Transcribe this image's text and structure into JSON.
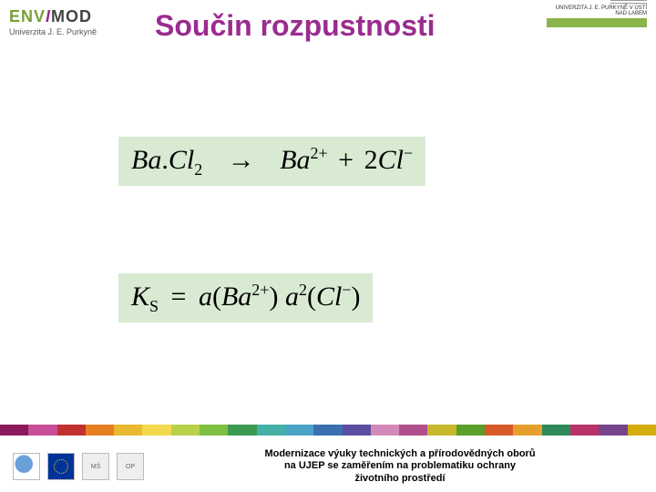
{
  "header": {
    "logo_main_env": "ENV",
    "logo_main_i": "I",
    "logo_main_mod": "MOD",
    "logo_sub": "Univerzita J. E. Purkyně",
    "title": "Součin rozpustnosti",
    "right_text": "UNIVERZITA J. E. PURKYNĚ V ÚSTÍ NAD LABEM"
  },
  "equations": {
    "eq1": {
      "lhs_a": "Ba",
      "lhs_dot": ".",
      "lhs_b": "Cl",
      "lhs_sub": "2",
      "arrow": "→",
      "rhs_a": "Ba",
      "rhs_a_sup": "2+",
      "plus": "+",
      "rhs_coef": "2",
      "rhs_b": "Cl",
      "rhs_b_sup": "−"
    },
    "eq2": {
      "lhs": "K",
      "lhs_sub": "S",
      "eq": "=",
      "a1": "a",
      "p1o": "(",
      "ion1": "Ba",
      "ion1_sup": "2+",
      "p1c": ")",
      "a2": "a",
      "a2_sup": "2",
      "p2o": "(",
      "ion2": "Cl",
      "ion2_sup": "−",
      "p2c": ")"
    }
  },
  "colorstrip": [
    "#8b1a5c",
    "#c94f9a",
    "#c22f2f",
    "#e67e22",
    "#e8b92e",
    "#f2d94e",
    "#b7d14a",
    "#7fbf3f",
    "#3a9a52",
    "#45b0a8",
    "#4aa3c7",
    "#3b6fb0",
    "#5a4fa0",
    "#d48ab8",
    "#b04f8c",
    "#c8b82e",
    "#5aa02a",
    "#d85a2a",
    "#e69f2e",
    "#2e8a5a",
    "#b8336a",
    "#76448a",
    "#d4ac0d"
  ],
  "footer": {
    "line1": "Modernizace výuky technických a přírodovědných oborů",
    "line2": "na UJEP se zaměřením na problematiku ochrany",
    "line3": "životního prostředí"
  }
}
